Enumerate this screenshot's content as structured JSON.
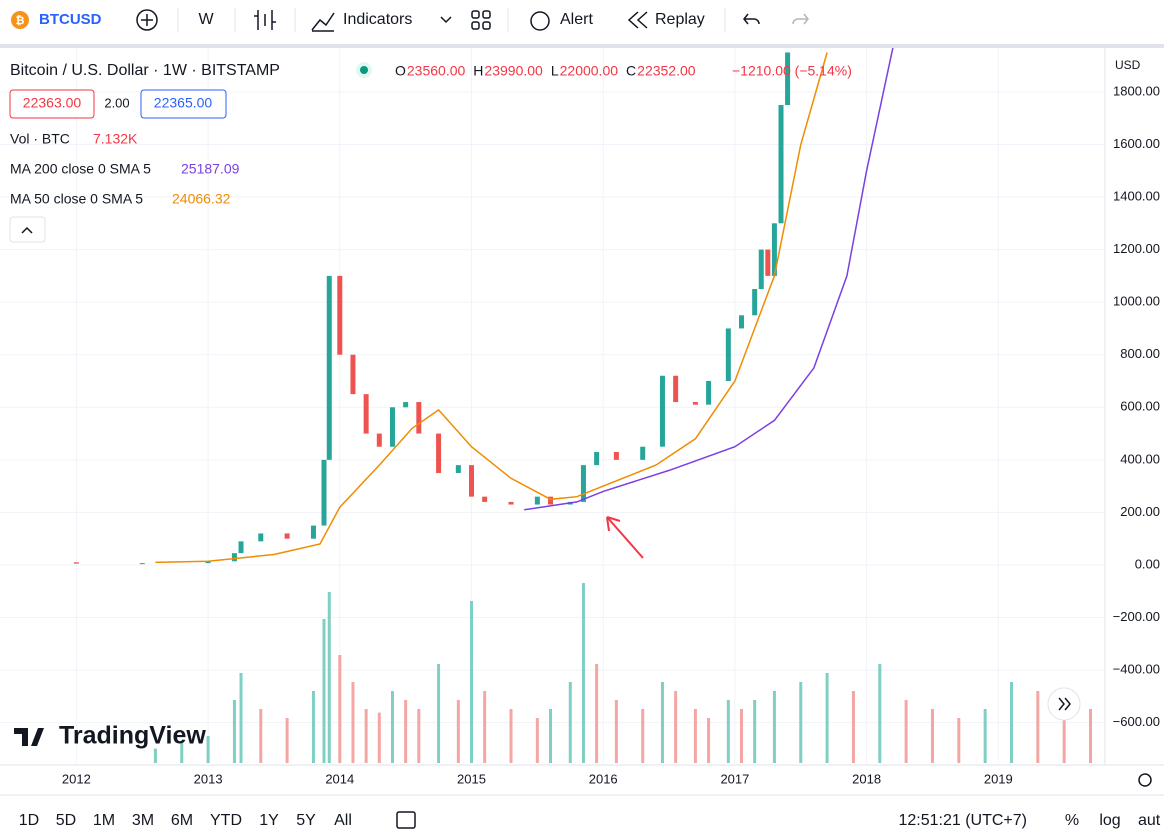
{
  "toolbar": {
    "symbol": "BTCUSD",
    "interval": "W",
    "indicators": "Indicators",
    "alert": "Alert",
    "replay": "Replay"
  },
  "legend": {
    "ohlc": [
      {
        "label": "O",
        "value": "23560.00"
      },
      {
        "label": "H",
        "value": "23990.00"
      },
      {
        "label": "L",
        "value": "22000.00"
      },
      {
        "label": "C",
        "value": "22352.00"
      }
    ],
    "change": "−1210.00 (−5.14%)",
    "bid": "22363.00",
    "spread": "2.00",
    "ask": "22365.00",
    "volume_value": "7.132K",
    "ma200_value": "25187.09",
    "ma50_value": "24066.32"
  },
  "chart_data": {
    "type": "candlestick",
    "currency": "USD",
    "brand": "TradingView",
    "xlim": [
      2011.42,
      2019.81
    ],
    "xticks": [
      2012,
      2013,
      2014,
      2015,
      2016,
      2017,
      2018,
      2019
    ],
    "ylim": [
      -761,
      1967
    ],
    "yticks": [
      {
        "value": -600,
        "label": "−600.00"
      },
      {
        "value": -400,
        "label": "−400.00"
      },
      {
        "value": -200,
        "label": "−200.00"
      },
      {
        "value": 0,
        "label": "0.00"
      },
      {
        "value": 200,
        "label": "200.00"
      },
      {
        "value": 400,
        "label": "400.00"
      },
      {
        "value": 600,
        "label": "600.00"
      },
      {
        "value": 800,
        "label": "800.00"
      },
      {
        "value": 1000,
        "label": "1000.00"
      },
      {
        "value": 1200,
        "label": "1200.00"
      },
      {
        "value": 1400,
        "label": "1400.00"
      },
      {
        "value": 1600,
        "label": "1600.00"
      },
      {
        "value": 1800,
        "label": "1800.00"
      }
    ],
    "series": [
      {
        "name": "Bitcoin / U.S. Dollar · 1W · BITSTAMP",
        "up_color": "#26a69a",
        "down_color": "#ef5350",
        "x": [
          2011.6,
          2012.0,
          2012.5,
          2013.0,
          2013.2,
          2013.25,
          2013.4,
          2013.6,
          2013.8,
          2013.88,
          2013.92,
          2014.0,
          2014.1,
          2014.2,
          2014.3,
          2014.4,
          2014.5,
          2014.6,
          2014.75,
          2014.9,
          2015.0,
          2015.1,
          2015.3,
          2015.5,
          2015.6,
          2015.75,
          2015.85,
          2015.95,
          2016.1,
          2016.3,
          2016.45,
          2016.55,
          2016.7,
          2016.8,
          2016.95,
          2017.05,
          2017.15,
          2017.2,
          2017.25,
          2017.3,
          2017.35,
          2017.4
        ],
        "values": [
          10,
          5,
          7,
          14,
          45,
          90,
          120,
          100,
          150,
          400,
          1100,
          800,
          650,
          500,
          450,
          600,
          620,
          500,
          350,
          380,
          260,
          240,
          230,
          260,
          230,
          240,
          380,
          430,
          400,
          450,
          720,
          620,
          610,
          700,
          900,
          950,
          1050,
          1200,
          1100,
          1300,
          1750,
          1950
        ]
      },
      {
        "name": "MA 50 close 0 SMA 5",
        "color": "#f08c00",
        "x": [
          2012.6,
          2013.0,
          2013.5,
          2013.85,
          2014.0,
          2014.3,
          2014.55,
          2014.75,
          2015.0,
          2015.3,
          2015.6,
          2015.8,
          2016.0,
          2016.4,
          2016.7,
          2017.0,
          2017.3,
          2017.5,
          2017.7
        ],
        "values": [
          10,
          14,
          40,
          80,
          220,
          380,
          520,
          590,
          450,
          330,
          250,
          260,
          300,
          380,
          480,
          700,
          1100,
          1600,
          1950
        ]
      },
      {
        "name": "MA 200 close 0 SMA 5",
        "color": "#7b3fe4",
        "x": [
          2015.4,
          2015.8,
          2016.0,
          2016.5,
          2017.0,
          2017.3,
          2017.6,
          2017.85,
          2018.0,
          2018.2
        ],
        "values": [
          210,
          240,
          280,
          360,
          450,
          550,
          750,
          1100,
          1500,
          1970
        ]
      },
      {
        "name": "Vol · BTC",
        "up_color": "#7fcfc4",
        "down_color": "#f4a6a4",
        "x": [
          2012.6,
          2012.8,
          2013.0,
          2013.2,
          2013.25,
          2013.4,
          2013.6,
          2013.8,
          2013.88,
          2013.92,
          2014.0,
          2014.1,
          2014.2,
          2014.3,
          2014.4,
          2014.5,
          2014.6,
          2014.75,
          2014.9,
          2015.0,
          2015.1,
          2015.3,
          2015.5,
          2015.6,
          2015.75,
          2015.85,
          2015.95,
          2016.1,
          2016.3,
          2016.45,
          2016.55,
          2016.7,
          2016.8,
          2016.95,
          2017.05,
          2017.15,
          2017.3,
          2017.5,
          2017.7,
          2017.9,
          2018.1,
          2018.3,
          2018.5,
          2018.7,
          2018.9,
          2019.1,
          2019.3,
          2019.5,
          2019.7
        ],
        "values": [
          8,
          12,
          15,
          35,
          50,
          30,
          25,
          40,
          80,
          95,
          60,
          45,
          30,
          28,
          40,
          35,
          30,
          55,
          35,
          90,
          40,
          30,
          25,
          30,
          45,
          100,
          55,
          35,
          30,
          45,
          40,
          30,
          25,
          35,
          30,
          35,
          40,
          45,
          50,
          40,
          55,
          35,
          30,
          25,
          30,
          45,
          40,
          35,
          30
        ]
      }
    ]
  },
  "bottom_bar": {
    "ranges": [
      "1D",
      "5D",
      "1M",
      "3M",
      "6M",
      "YTD",
      "1Y",
      "5Y",
      "All"
    ],
    "clock": "12:51:21 (UTC+7)",
    "percent": "%",
    "log": "log",
    "auto": "aut"
  }
}
